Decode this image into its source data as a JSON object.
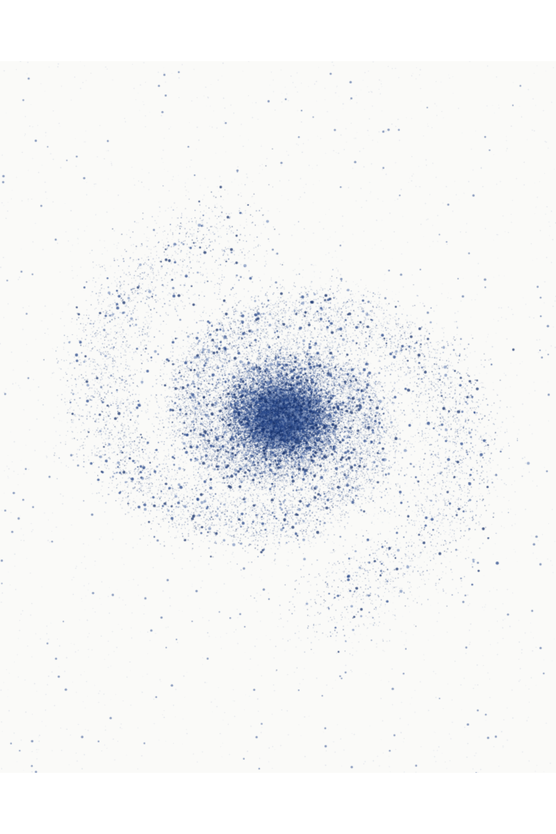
{
  "artwork": {
    "subject": "spiral-galaxy",
    "colors": {
      "page_background": "#ffffff",
      "paper": "#fafaf8",
      "star_dark": "#15306b",
      "star_mid": "#2a4a8c",
      "star_light": "#7f95c0"
    }
  }
}
